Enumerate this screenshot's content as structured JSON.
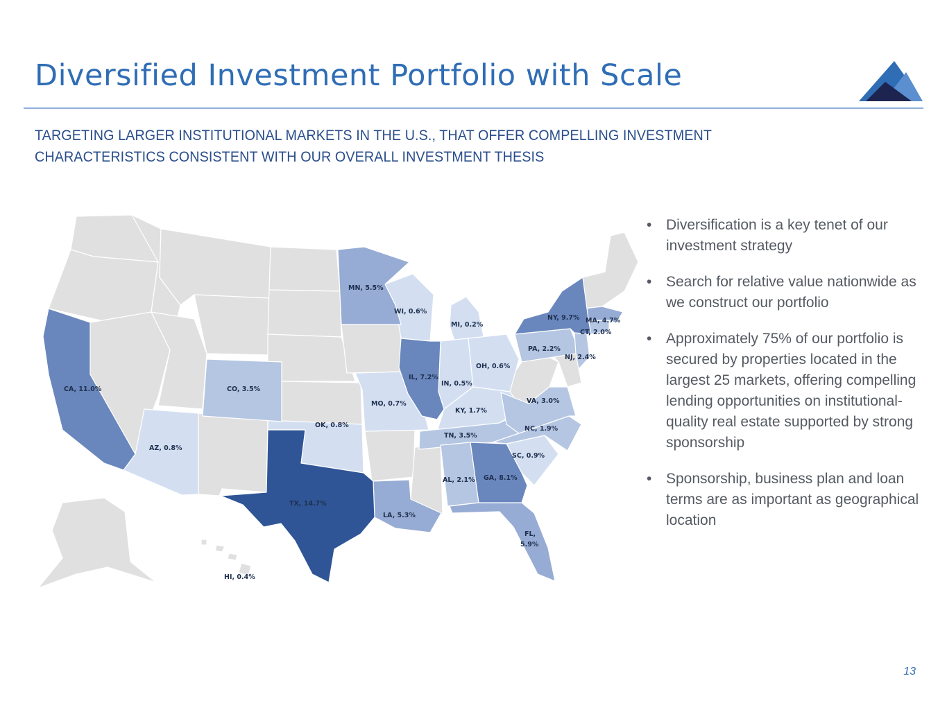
{
  "slide": {
    "title": "Diversified Investment Portfolio with Scale",
    "subtitle": "TARGETING LARGER INSTITUTIONAL MARKETS IN THE U.S., THAT OFFER COMPELLING INVESTMENT CHARACTERISTICS CONSISTENT WITH OUR OVERALL INVESTMENT THESIS",
    "page_number": "13"
  },
  "colors": {
    "title": "#2f6db5",
    "subtitle": "#2a4e8c",
    "no_exposure": "#e0e0e0",
    "tier_very_light": "#d3dff1",
    "tier_light": "#b5c6e2",
    "tier_medium": "#96acd4",
    "tier_dark": "#6987bd",
    "tier_darkest": "#2f5596"
  },
  "bullets": [
    "Diversification is a key tenet of our investment strategy",
    "Search for relative value nationwide as we construct our portfolio",
    "Approximately 75% of our portfolio is secured by properties located in the largest 25 markets, offering compelling lending opportunities on institutional-quality real estate supported by strong sponsorship",
    "Sponsorship, business plan and loan terms are as important as geographical location"
  ],
  "map": {
    "labels": {
      "CA": "CA, 11.0%",
      "AZ": "AZ, 0.8%",
      "CO": "CO, 3.5%",
      "TX": "TX, 14.7%",
      "OK": "OK, 0.8%",
      "MN": "MN, 5.5%",
      "WI": "WI, 0.6%",
      "MI": "MI, 0.2%",
      "IL": "IL, 7.2%",
      "IN": "IN, 0.5%",
      "MO": "MO, 0.7%",
      "OH": "OH, 0.6%",
      "KY": "KY, 1.7%",
      "TN": "TN, 3.5%",
      "AL": "AL, 2.1%",
      "GA": "GA, 8.1%",
      "LA": "LA, 5.3%",
      "FL_line1": "FL,",
      "FL_line2": "5.9%",
      "SC": "SC, 0.9%",
      "NC": "NC, 1.9%",
      "VA": "VA, 3.0%",
      "PA": "PA, 2.2%",
      "NJ": "NJ, 2.4%",
      "NY": "NY, 9.7%",
      "MA": "MA, 4.7%",
      "CT": "CT, 2.0%",
      "HI": "HI, 0.4%"
    }
  }
}
